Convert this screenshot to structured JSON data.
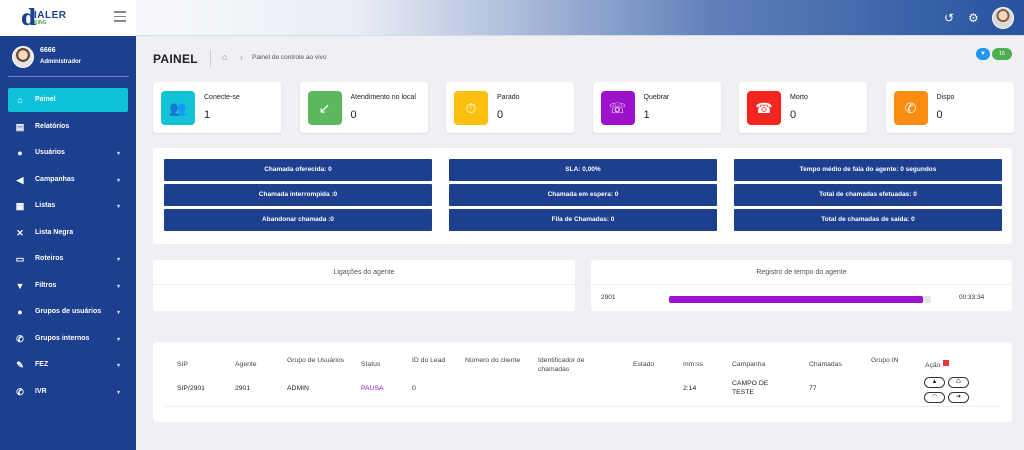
{
  "brand": {
    "logo_letter": "d",
    "logo_text": "IALER",
    "logo_sub": "KING"
  },
  "user": {
    "name": "6666",
    "role": "Administrador"
  },
  "nav": [
    {
      "label": "Painel",
      "icon": "home-icon",
      "glyph": "⌂",
      "active": true
    },
    {
      "label": "Relatórios",
      "icon": "file-icon",
      "glyph": "▤"
    },
    {
      "label": "Usuários",
      "icon": "user-icon",
      "glyph": "●"
    },
    {
      "label": "Campanhas",
      "icon": "megaphone-icon",
      "glyph": "◀"
    },
    {
      "label": "Listas",
      "icon": "list-icon",
      "glyph": "▦"
    },
    {
      "label": "Lista Negra",
      "icon": "blocked-phone-icon",
      "glyph": "✕"
    },
    {
      "label": "Roteiros",
      "icon": "script-icon",
      "glyph": "▭"
    },
    {
      "label": "Filtros",
      "icon": "filter-icon",
      "glyph": "▼"
    },
    {
      "label": "Grupos de usuários",
      "icon": "users-icon",
      "glyph": "●"
    },
    {
      "label": "Grupos internos",
      "icon": "phone-icon",
      "glyph": "✆"
    },
    {
      "label": "FEZ",
      "icon": "edit-icon",
      "glyph": "✎"
    },
    {
      "label": "IVR",
      "icon": "ivr-phone-icon",
      "glyph": "✆"
    }
  ],
  "header": {
    "title": "PAINEL",
    "breadcrumb": "Painel de controle ao vivo",
    "filter_count": "16"
  },
  "cards": [
    {
      "label": "Conecte-se",
      "value": "1",
      "color": "#12c2d6",
      "icon": "users-icon",
      "glyph": "👥"
    },
    {
      "label": "Atendimento no local",
      "value": "0",
      "color": "#5cb85c",
      "icon": "incoming-call-icon",
      "glyph": "↙"
    },
    {
      "label": "Parado",
      "value": "0",
      "color": "#fbbf10",
      "icon": "user-clock-icon",
      "glyph": "⏱"
    },
    {
      "label": "Quebrar",
      "value": "1",
      "color": "#9c11c9",
      "icon": "call-break-icon",
      "glyph": "☏"
    },
    {
      "label": "Morto",
      "value": "0",
      "color": "#f2261f",
      "icon": "hangup-icon",
      "glyph": "☎"
    },
    {
      "label": "Dispo",
      "value": "0",
      "color": "#fb8c12",
      "icon": "phone-slash-icon",
      "glyph": "✆"
    }
  ],
  "stats": [
    [
      "Chamada oferecida: 0",
      "SLA: 0,00%",
      "Tempo médio de fala do agente: 0 segundos"
    ],
    [
      "Chamada interrompida :0",
      "Chamada em espera: 0",
      "Total de chamadas efetuadas: 0"
    ],
    [
      "Abandonar chamada :0",
      "Fila de Chamadas: 0",
      "Total de chamadas de saída: 0"
    ]
  ],
  "panels": {
    "agent_calls_title": "Ligações do agente",
    "time_log_title": "Registro de tempo do agente",
    "time_log": {
      "agent": "2901",
      "progress_pct": 97,
      "time": "00:33:34",
      "bar_color": "#9c11c9"
    }
  },
  "table": {
    "headers": [
      "SIP",
      "Agente",
      "Grupo de Usuários",
      "Status",
      "ID do Lead",
      "Número do cliente",
      "Identificador de chamadas",
      "Estado",
      "mm:ss",
      "Campanha",
      "Chamadas",
      "Grupo IN",
      "Ação"
    ],
    "row": {
      "sip": "SIP/2901",
      "agent": "2901",
      "group": "ADMIN",
      "status": "PAUSA",
      "lead_id": "0",
      "client_number": "",
      "caller_id": "",
      "state": "",
      "mmss": "2:14",
      "campaign": "CAMPO DE TESTE",
      "calls": "77",
      "group_in": ""
    }
  }
}
